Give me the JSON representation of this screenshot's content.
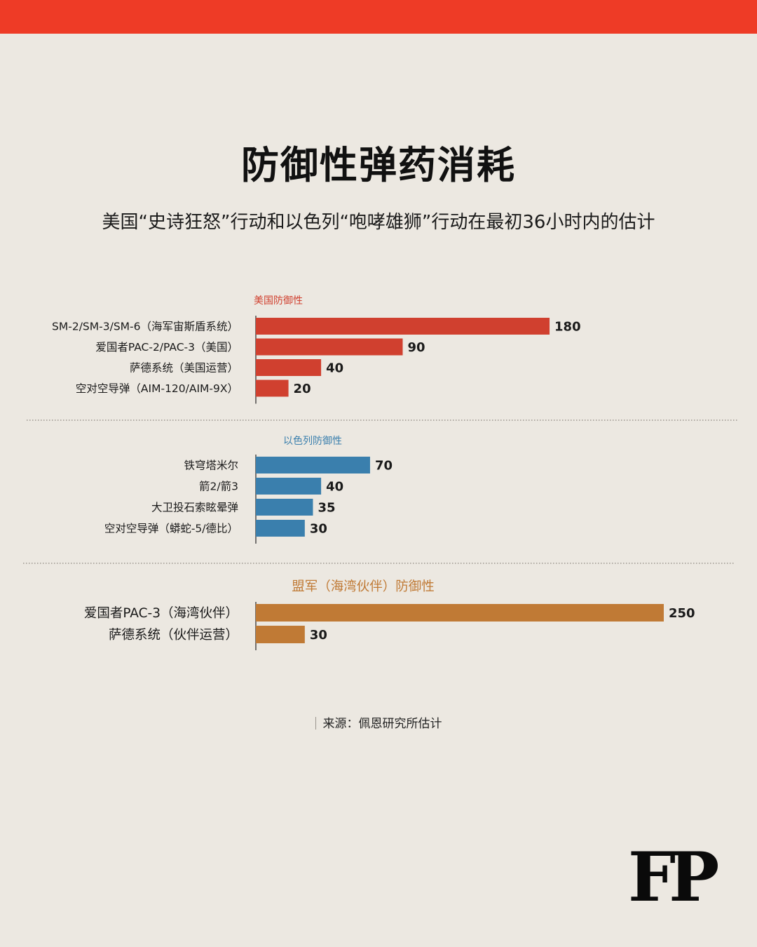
{
  "header": {
    "bar_color": "#ee3b26"
  },
  "title": "防御性弹药消耗",
  "subtitle": "美国“史诗狂怒”行动和以色列“咆哮雄狮”行动在最初36小时内的估计",
  "source": "来源：佩恩研究所估计",
  "logo": "FP",
  "chart_data": {
    "type": "bar",
    "orientation": "horizontal",
    "grid": false,
    "groups": [
      {
        "name": "美国防御性",
        "color": "#d0402f",
        "categories": [
          "SM-2/SM-3/SM-6（海军宙斯盾系统）",
          "爱国者PAC-2/PAC-3（美国）",
          "萨德系统（美国运营）",
          "空对空导弹（AIM-120/AIM-9X）"
        ],
        "values": [
          180,
          90,
          40,
          20
        ]
      },
      {
        "name": "以色列防御性",
        "color": "#3a7fad",
        "categories": [
          "铁穹塔米尔",
          "箭2/箭3",
          "大卫投石索眩晕弹",
          "空对空导弹（蟒蛇-5/德比）"
        ],
        "values": [
          70,
          40,
          35,
          30
        ]
      },
      {
        "name": "盟军（海湾伙伴）防御性",
        "color": "#c07a35",
        "categories": [
          "爱国者PAC-3（海湾伙伴）",
          "萨德系统（伙伴运营）"
        ],
        "values": [
          250,
          30
        ]
      }
    ]
  }
}
